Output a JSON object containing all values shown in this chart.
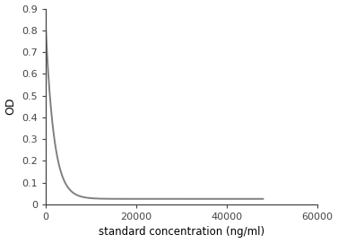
{
  "title": "",
  "xlabel": "standard concentration (ng/ml)",
  "ylabel": "OD",
  "xlim": [
    0,
    60000
  ],
  "ylim": [
    0,
    0.9
  ],
  "xticks": [
    0,
    20000,
    40000,
    60000
  ],
  "xtick_labels": [
    "0",
    "20000",
    "40000",
    "60000"
  ],
  "yticks": [
    0,
    0.1,
    0.2,
    0.3,
    0.4,
    0.5,
    0.6,
    0.7,
    0.8,
    0.9
  ],
  "ytick_labels": [
    "0",
    "0.1",
    "0.2",
    "0.3",
    "0.4",
    "0.5",
    "0.6",
    "0.7",
    "0.8",
    "0.9"
  ],
  "line_color": "#808080",
  "line_width": 1.4,
  "background_color": "#ffffff",
  "curve_params": {
    "a": 0.82,
    "b": 0.025,
    "k": 0.00055
  }
}
